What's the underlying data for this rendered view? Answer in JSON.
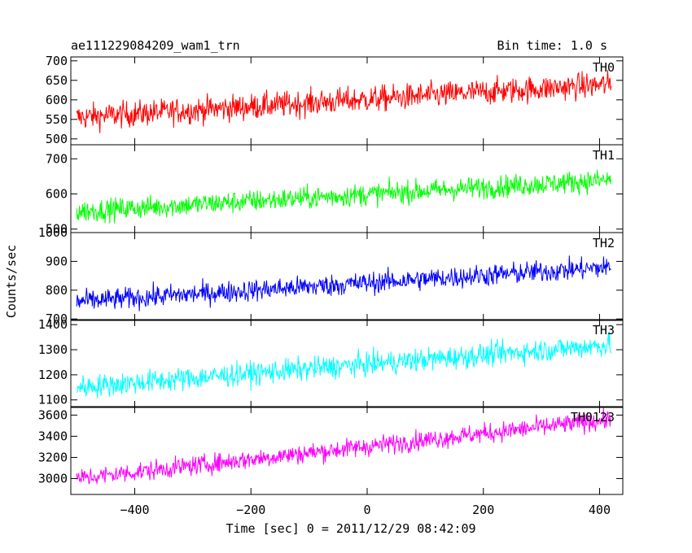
{
  "header": {
    "left_title": "ae111229084209_wam1_trn",
    "right_title": "Bin time: 1.0 s"
  },
  "chart_data": {
    "type": "line",
    "xlabel": "Time [sec] 0 = 2011/12/29 08:42:09",
    "ylabel": "Counts/sec",
    "xlim": [
      -510,
      440
    ],
    "x_ticks": [
      -400,
      -200,
      0,
      200,
      400
    ],
    "x_tick_labels": [
      "−400",
      "−200",
      "0",
      "200",
      "400"
    ],
    "x_range": [
      -500,
      420
    ],
    "bin_time": 1.0,
    "panels": [
      {
        "name": "TH0",
        "color": "#ff0000",
        "ylim": [
          485,
          710
        ],
        "y_ticks": [
          500,
          550,
          600,
          650,
          700
        ],
        "y_tick_labels": [
          "500",
          "550",
          "600",
          "650",
          "700"
        ],
        "trend_start": 555,
        "trend_end": 640,
        "noise": 40
      },
      {
        "name": "TH1",
        "color": "#00ff00",
        "ylim": [
          490,
          740
        ],
        "y_ticks": [
          500,
          600,
          700
        ],
        "y_tick_labels": [
          "500",
          "600",
          "700"
        ],
        "trend_start": 550,
        "trend_end": 640,
        "noise": 38
      },
      {
        "name": "TH2",
        "color": "#0000ff",
        "ylim": [
          695,
          1000
        ],
        "y_ticks": [
          700,
          800,
          900,
          1000
        ],
        "y_tick_labels": [
          "700",
          "800",
          "900",
          "1000"
        ],
        "trend_start": 760,
        "trend_end": 880,
        "noise": 45
      },
      {
        "name": "TH3",
        "color": "#00ffff",
        "ylim": [
          1070,
          1420
        ],
        "y_ticks": [
          1100,
          1200,
          1300,
          1400
        ],
        "y_tick_labels": [
          "1100",
          "1200",
          "1300",
          "1400"
        ],
        "trend_start": 1150,
        "trend_end": 1320,
        "noise": 55
      },
      {
        "name": "TH0123",
        "color": "#ff00ff",
        "ylim": [
          2850,
          3680
        ],
        "y_ticks": [
          3000,
          3200,
          3400,
          3600
        ],
        "y_tick_labels": [
          "3000",
          "3200",
          "3400",
          "3600"
        ],
        "trend_start": 3000,
        "trend_end": 3560,
        "noise": 110
      }
    ]
  }
}
